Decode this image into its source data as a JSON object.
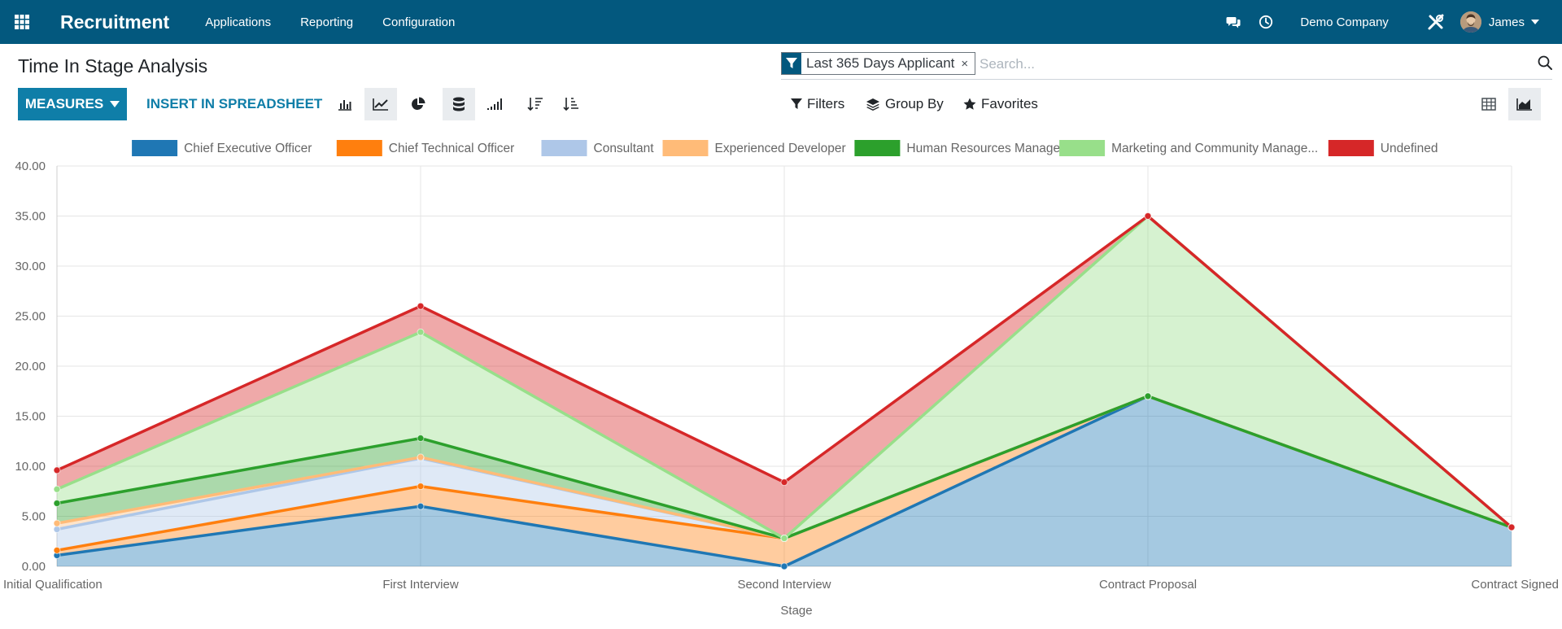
{
  "navbar": {
    "app_name": "Recruitment",
    "menu": [
      "Applications",
      "Reporting",
      "Configuration"
    ],
    "company": "Demo Company",
    "user": "James"
  },
  "page": {
    "title": "Time In Stage Analysis"
  },
  "search": {
    "facet_value": "Last 365 Days Applicant",
    "facet_remove": "×",
    "placeholder": "Search..."
  },
  "toolbar": {
    "measures_label": "MEASURES",
    "insert_label": "INSERT IN SPREADSHEET",
    "filters_label": "Filters",
    "groupby_label": "Group By",
    "favorites_label": "Favorites"
  },
  "colors": {
    "navbar": "#03587e",
    "accent": "#0f7ea8"
  },
  "chart_data": {
    "type": "area",
    "stacked": true,
    "categories": [
      "Initial Qualification",
      "First Interview",
      "Second Interview",
      "Contract Proposal",
      "Contract Signed"
    ],
    "xlabel": "Stage",
    "ylabel": "",
    "ylim": [
      0,
      40
    ],
    "yticks": [
      "0.00",
      "5.00",
      "10.00",
      "15.00",
      "20.00",
      "25.00",
      "30.00",
      "35.00",
      "40.00"
    ],
    "grid": true,
    "legend_position": "top",
    "series": [
      {
        "name": "Chief Executive Officer",
        "color": "#1f77b4",
        "cumulative": [
          1.1,
          6.0,
          0.0,
          17.0,
          3.9
        ]
      },
      {
        "name": "Chief Technical Officer",
        "color": "#ff7f0e",
        "cumulative": [
          1.6,
          8.0,
          2.8,
          17.0,
          3.9
        ]
      },
      {
        "name": "Consultant",
        "color": "#aec7e8",
        "cumulative": [
          3.7,
          10.8,
          2.8,
          17.0,
          3.9
        ]
      },
      {
        "name": "Experienced Developer",
        "color": "#ffbb78",
        "cumulative": [
          4.3,
          10.9,
          2.8,
          17.0,
          3.9
        ]
      },
      {
        "name": "Human Resources Manager",
        "color": "#2ca02c",
        "cumulative": [
          6.3,
          12.8,
          2.8,
          17.0,
          3.9
        ]
      },
      {
        "name": "Marketing and Community Manage...",
        "color": "#98df8a",
        "cumulative": [
          7.7,
          23.4,
          2.8,
          35.0,
          3.9
        ]
      },
      {
        "name": "Undefined",
        "color": "#d62728",
        "cumulative": [
          9.6,
          26.0,
          8.4,
          35.0,
          3.9
        ]
      }
    ]
  }
}
